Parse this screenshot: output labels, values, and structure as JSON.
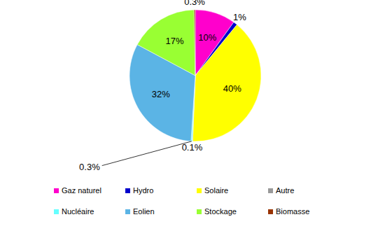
{
  "chart_data": {
    "type": "pie",
    "categories": [
      "Gaz naturel",
      "Hydro",
      "Solaire",
      "Autre",
      "Nucléaire",
      "Eolien",
      "Stockage",
      "Biomasse"
    ],
    "values": [
      10,
      1,
      40,
      0.1,
      0.3,
      32,
      17,
      0.3
    ],
    "value_labels": [
      "10%",
      "1%",
      "40%",
      "0.1%",
      "0.3%",
      "32%",
      "17%",
      "0.3%"
    ],
    "colors": [
      "#ff00cc",
      "#0000cc",
      "#ffff00",
      "#999999",
      "#66ffff",
      "#5bb4e5",
      "#99ff33",
      "#993300"
    ],
    "data_labels": true,
    "legend": "bottom"
  }
}
